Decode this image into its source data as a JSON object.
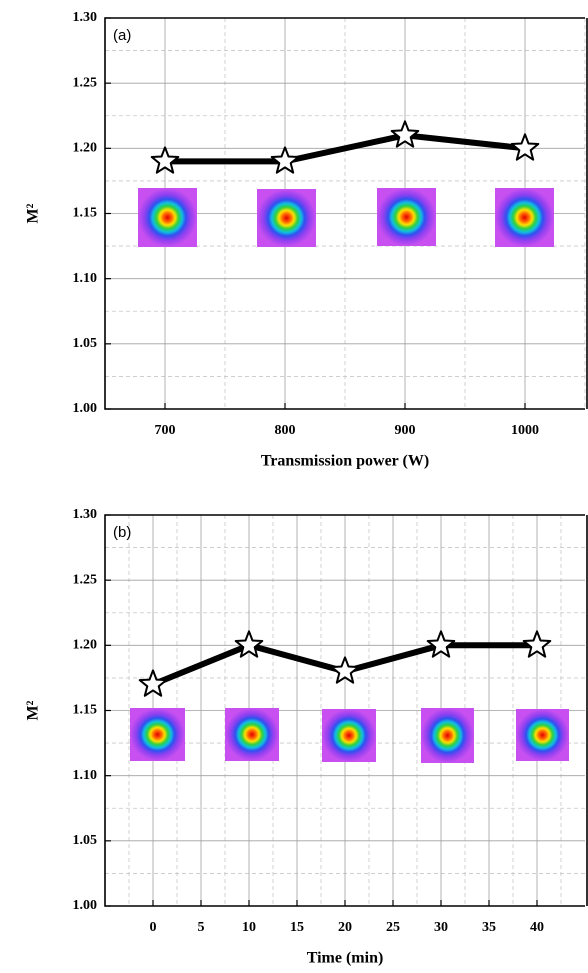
{
  "chart_data": [
    {
      "type": "line",
      "annotation": "(a)",
      "xlabel": "Transmission power (W)",
      "ylabel": "M²",
      "x": [
        700,
        800,
        900,
        1000
      ],
      "series": [
        {
          "color": "#000000",
          "values": [
            1.19,
            1.19,
            1.21,
            1.2
          ]
        }
      ],
      "xlim": [
        650,
        1050
      ],
      "xticks": [
        700,
        800,
        900,
        1000
      ],
      "ylim": [
        1.0,
        1.3
      ],
      "yticks": [
        {
          "value": 1.0,
          "label": "1.00"
        },
        1.05,
        {
          "value": 1.1,
          "label": "1.10"
        },
        1.15,
        {
          "value": 1.2,
          "label": "1.20"
        },
        1.25,
        {
          "value": 1.3,
          "label": "1.30"
        }
      ],
      "grid": true
    },
    {
      "type": "line",
      "annotation": "(b)",
      "xlabel": "Time (min)",
      "ylabel": "M²",
      "x": [
        0,
        10,
        20,
        30,
        40
      ],
      "series": [
        {
          "color": "#000000",
          "values": [
            1.17,
            1.2,
            1.18,
            1.2,
            1.2
          ]
        }
      ],
      "xlim": [
        -5,
        45
      ],
      "xticks": [
        0,
        5,
        10,
        15,
        20,
        25,
        30,
        35,
        40
      ],
      "ylim": [
        1.0,
        1.3
      ],
      "yticks": [
        {
          "value": 1.0,
          "label": "1.00"
        },
        1.05,
        {
          "value": 1.1,
          "label": "1.10"
        },
        1.15,
        {
          "value": 1.2,
          "label": "1.20"
        },
        1.25,
        {
          "value": 1.3,
          "label": "1.30"
        }
      ],
      "grid": true
    }
  ]
}
